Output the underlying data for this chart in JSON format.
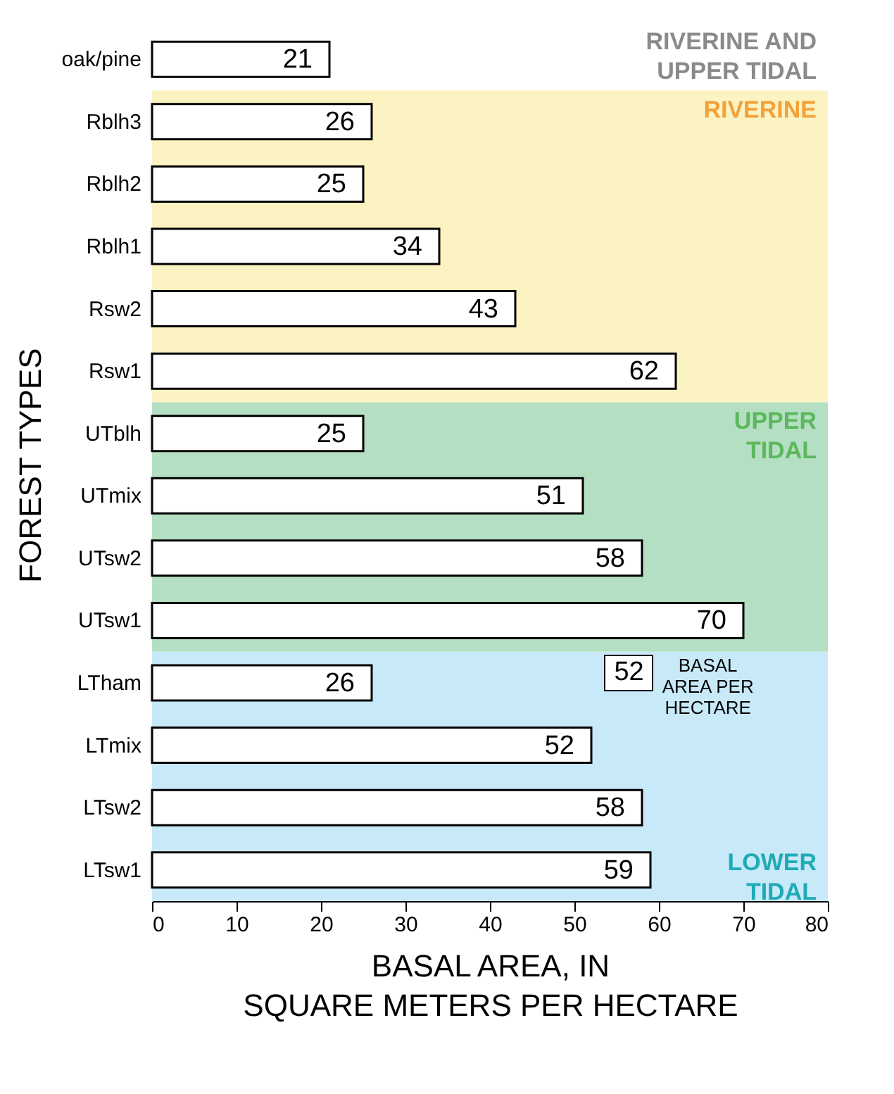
{
  "chart_data": {
    "type": "bar",
    "orientation": "horizontal",
    "xlabel": "BASAL AREA, IN\nSQUARE METERS PER HECTARE",
    "ylabel": "FOREST TYPES",
    "categories": [
      "oak/pine",
      "Rblh3",
      "Rblh2",
      "Rblh1",
      "Rsw2",
      "Rsw1",
      "UTblh",
      "UTmix",
      "UTsw2",
      "UTsw1",
      "LTham",
      "LTmix",
      "LTsw2",
      "LTsw1"
    ],
    "series": [
      {
        "color": "#ffffff",
        "values": [
          21,
          26,
          25,
          34,
          43,
          62,
          25,
          51,
          58,
          70,
          26,
          52,
          58,
          59
        ]
      }
    ],
    "xlim": [
      0,
      80
    ],
    "xticks": [
      0,
      10,
      20,
      30,
      40,
      50,
      60,
      70,
      80
    ],
    "data_labels": true,
    "grid": false,
    "bands": [
      {
        "axis": "y",
        "from": "Rblh3",
        "to": "Rsw1",
        "label": "RIVERINE",
        "color": "#fcf3c2"
      },
      {
        "axis": "y",
        "from": "UTblh",
        "to": "UTsw1",
        "label": "UPPER\nTIDAL",
        "color": "#b4dfc2"
      },
      {
        "axis": "y",
        "from": "LTham",
        "to": "LTsw1",
        "label": "LOWER\nTIDAL",
        "color": "#c8e9f8"
      }
    ],
    "annotations": [
      "RIVERINE AND\nUPPER TIDAL",
      "52",
      "BASAL\nAREA PER\nHECTARE"
    ]
  }
}
